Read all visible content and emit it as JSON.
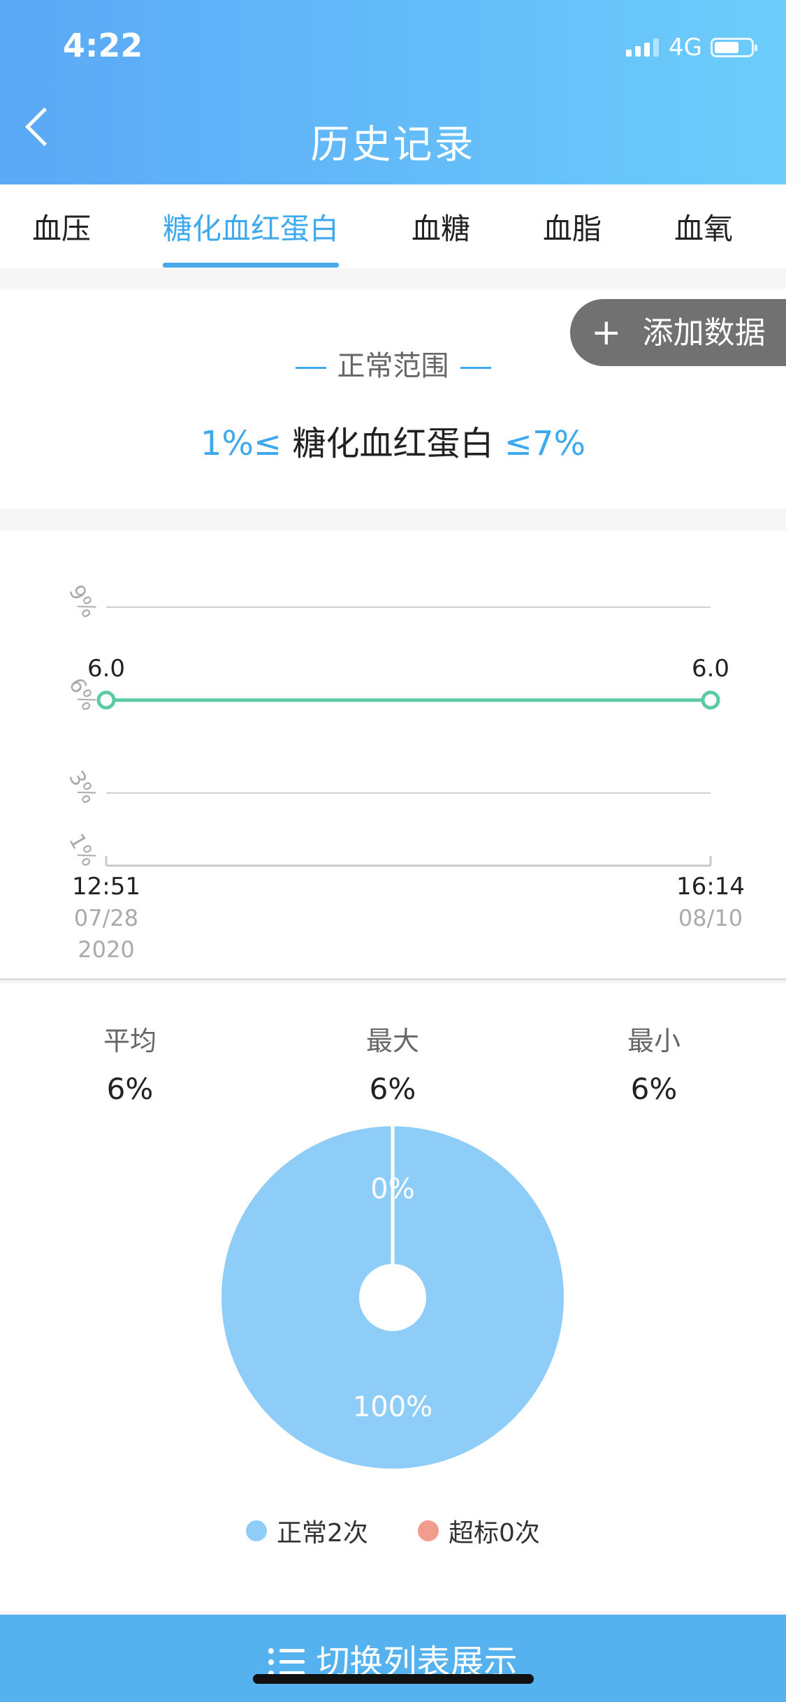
{
  "status_bar": {
    "time": "4:22",
    "network": "4G"
  },
  "header": {
    "title": "历史记录"
  },
  "tabs": [
    {
      "label": "血压",
      "active": false
    },
    {
      "label": "糖化血红蛋白",
      "active": true
    },
    {
      "label": "血糖",
      "active": false
    },
    {
      "label": "血脂",
      "active": false
    },
    {
      "label": "血氧",
      "active": false
    }
  ],
  "add_button": {
    "label": "添加数据"
  },
  "normal_range": {
    "title": "正常范围",
    "lower": "1%≤",
    "name": "糖化血红蛋白",
    "upper": "≤7%"
  },
  "chart_data": {
    "type": "line",
    "y_ticks": [
      "1%",
      "3%",
      "6%",
      "9%"
    ],
    "y_tick_values": [
      1,
      3,
      6,
      9
    ],
    "ylim": [
      1,
      9
    ],
    "x": [
      {
        "time": "12:51",
        "date": "07/28",
        "year": "2020"
      },
      {
        "time": "16:14",
        "date": "08/10",
        "year": ""
      }
    ],
    "series": [
      {
        "values": [
          6.0,
          6.0
        ],
        "labels": [
          "6.0",
          "6.0"
        ],
        "color": "#5ccaa2"
      }
    ],
    "grid": true
  },
  "stats": {
    "average": {
      "label": "平均",
      "value": "6%"
    },
    "max": {
      "label": "最大",
      "value": "6%"
    },
    "min": {
      "label": "最小",
      "value": "6%"
    }
  },
  "pie": {
    "slices": [
      {
        "name": "正常",
        "percent_label": "100%",
        "value": 100,
        "color": "#8ecdf8"
      },
      {
        "name": "超标",
        "percent_label": "0%",
        "value": 0,
        "color": "#f29c8e"
      }
    ]
  },
  "legend": [
    {
      "label": "正常2次",
      "color": "#8ecdf8"
    },
    {
      "label": "超标0次",
      "color": "#f29c8e"
    }
  ],
  "bottom_button": {
    "label": "切换列表展示"
  }
}
